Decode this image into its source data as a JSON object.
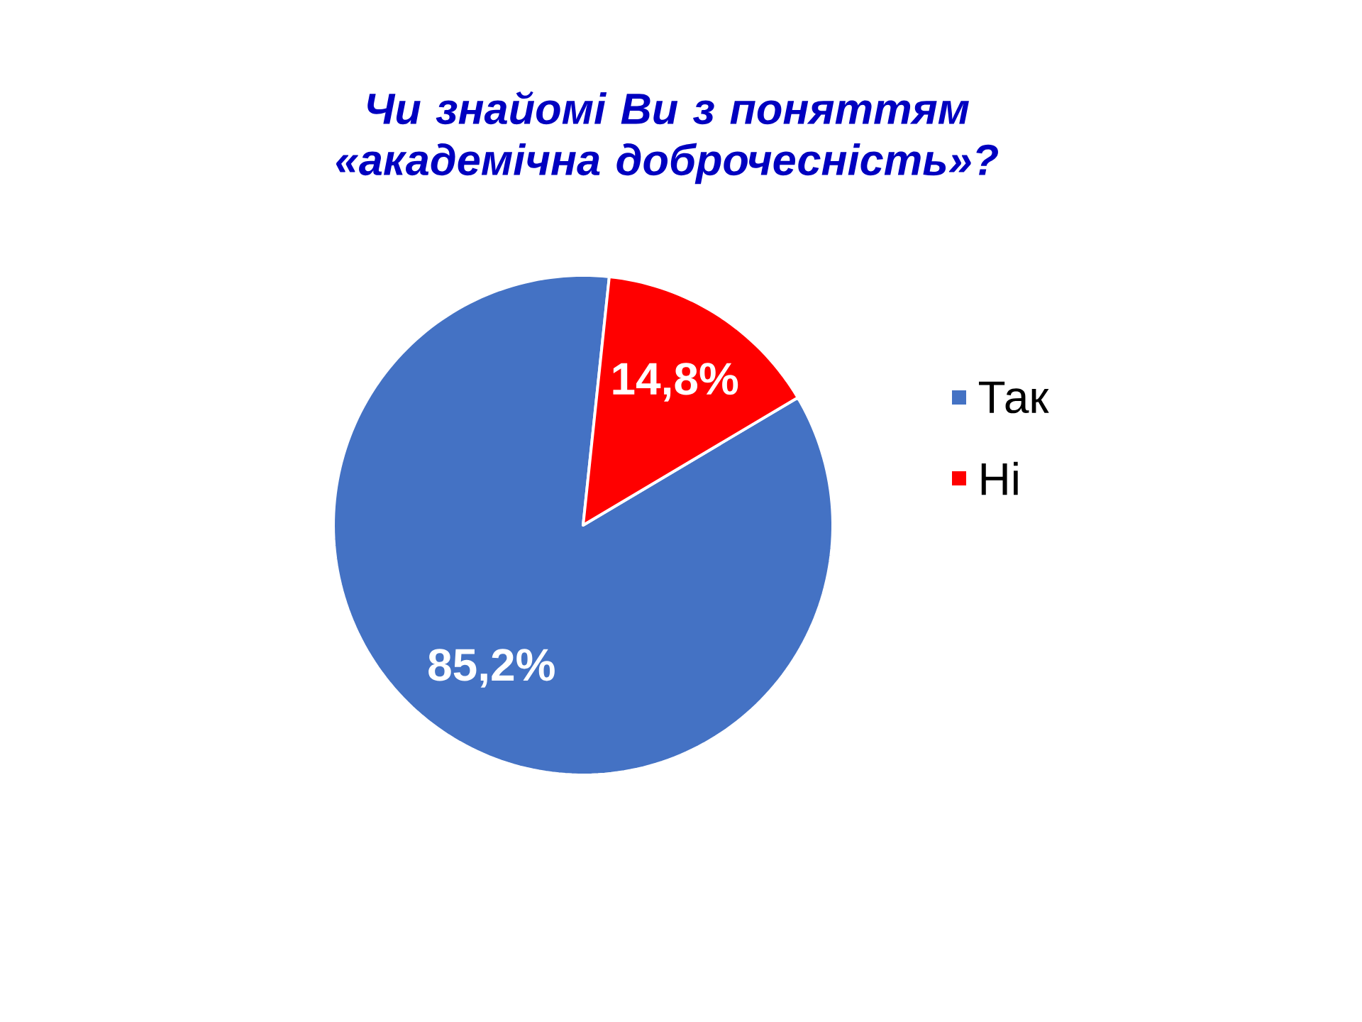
{
  "chart_data": {
    "type": "pie",
    "title": "Чи знайомі Ви з поняттям «академічна доброчесність»?",
    "categories": [
      "Так",
      "Ні"
    ],
    "values": [
      85.2,
      14.8
    ],
    "colors": [
      "#4472c4",
      "#ff0000"
    ],
    "value_labels": [
      "85,2%",
      "14,8%"
    ],
    "legend": "right"
  }
}
